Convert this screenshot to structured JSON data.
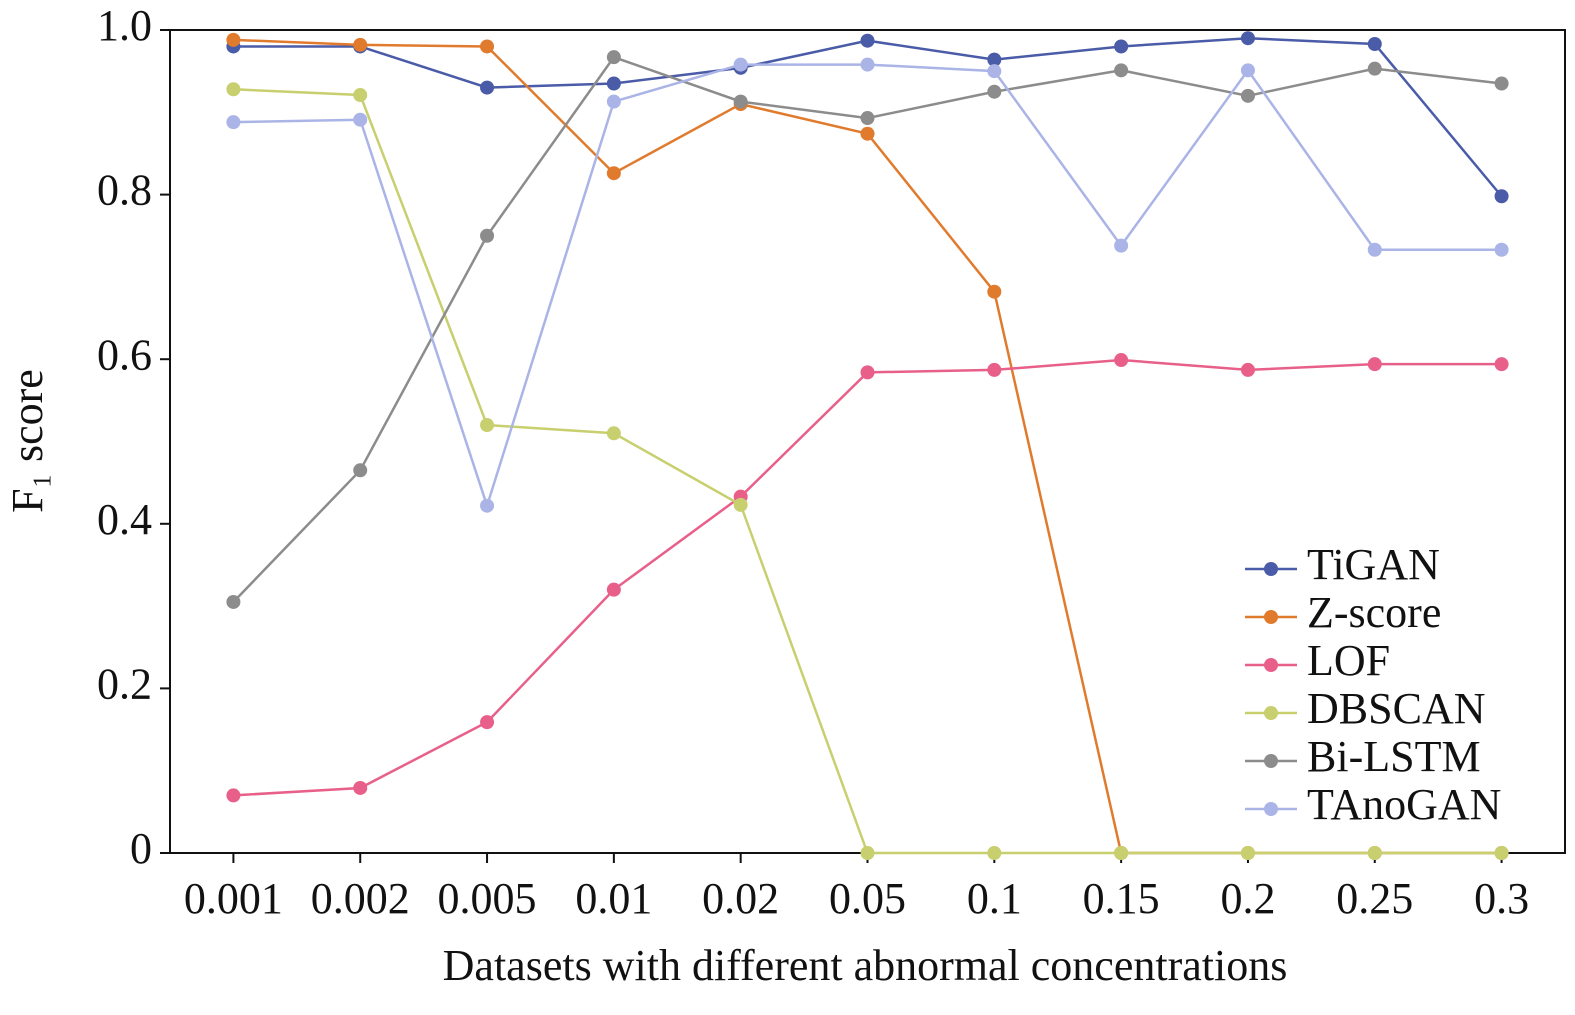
{
  "chart_data": {
    "type": "line",
    "xlabel": "Datasets with different abnormal concentrations",
    "ylabel": "F₁ score",
    "categories": [
      "0.001",
      "0.002",
      "0.005",
      "0.01",
      "0.02",
      "0.05",
      "0.1",
      "0.15",
      "0.2",
      "0.25",
      "0.3"
    ],
    "ylim": [
      0,
      1
    ],
    "yticks": [
      0,
      0.2,
      0.4,
      0.6,
      0.8,
      {
        "value": 1,
        "label": "1.0"
      }
    ],
    "legend": "lower right",
    "series": [
      {
        "name": "TiGAN",
        "color": "#4a5ba8",
        "values": [
          0.98,
          0.98,
          0.93,
          0.935,
          0.954,
          0.987,
          0.964,
          0.98,
          0.99,
          0.983,
          0.798
        ]
      },
      {
        "name": "Z-score",
        "color": "#e07b2e",
        "values": [
          0.988,
          0.982,
          0.98,
          0.826,
          0.91,
          0.874,
          0.682,
          0,
          0,
          0,
          0
        ]
      },
      {
        "name": "LOF",
        "color": "#e8608a",
        "values": [
          0.07,
          0.079,
          0.159,
          0.32,
          0.433,
          0.584,
          0.587,
          0.599,
          0.587,
          0.594,
          0.594
        ]
      },
      {
        "name": "DBSCAN",
        "color": "#c8cf6e",
        "values": [
          0.928,
          0.921,
          0.52,
          0.51,
          0.423,
          0,
          0,
          0,
          0,
          0,
          0
        ]
      },
      {
        "name": "Bi-LSTM",
        "color": "#8c8c8c",
        "values": [
          0.305,
          0.465,
          0.75,
          0.967,
          0.913,
          0.893,
          0.925,
          0.951,
          0.92,
          0.953,
          0.935
        ]
      },
      {
        "name": "TAnoGAN",
        "color": "#aab4e6",
        "values": [
          0.888,
          0.891,
          0.422,
          0.913,
          0.958,
          0.958,
          0.95,
          0.738,
          0.951,
          0.733,
          0.733
        ]
      }
    ]
  }
}
